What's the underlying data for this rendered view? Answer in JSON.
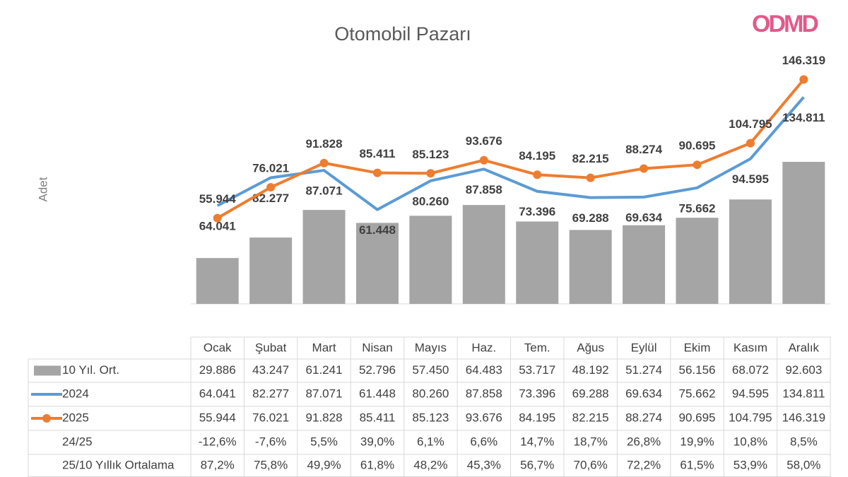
{
  "logo": "ODMD",
  "chart_data": {
    "type": "bar-line",
    "title": "Otomobil Pazarı",
    "y_label": "Adet",
    "categories": [
      "Ocak",
      "Şubat",
      "Mart",
      "Nisan",
      "Mayıs",
      "Haz.",
      "Tem.",
      "Ağus",
      "Eylül",
      "Ekim",
      "Kasım",
      "Aralık"
    ],
    "series": [
      {
        "name": "10 Yıl. Ort.",
        "kind": "bar",
        "color": "#a5a5a5",
        "values": [
          29886,
          43247,
          61241,
          52796,
          57450,
          64483,
          53717,
          48192,
          51274,
          56156,
          68072,
          92603
        ],
        "value_labels": [
          "29.886",
          "43.247",
          "61.241",
          "52.796",
          "57.450",
          "64.483",
          "53.717",
          "48.192",
          "51.274",
          "56.156",
          "68.072",
          "92.603"
        ]
      },
      {
        "name": "2024",
        "kind": "line",
        "color": "#5b9bd5",
        "values": [
          64041,
          82277,
          87071,
          61448,
          80260,
          87858,
          73396,
          69288,
          69634,
          75662,
          94595,
          134811
        ],
        "value_labels": [
          "64.041",
          "82.277",
          "87.071",
          "61.448",
          "80.260",
          "87.858",
          "73.396",
          "69.288",
          "69.634",
          "75.662",
          "94.595",
          "134.811"
        ]
      },
      {
        "name": "2025",
        "kind": "line-marker",
        "color": "#ed7d31",
        "values": [
          55944,
          76021,
          91828,
          85411,
          85123,
          93676,
          84195,
          82215,
          88274,
          90695,
          104795,
          146319
        ],
        "value_labels": [
          "55.944",
          "76.021",
          "91.828",
          "85.411",
          "85.123",
          "93.676",
          "84.195",
          "82.215",
          "88.274",
          "90.695",
          "104.795",
          "146.319"
        ]
      }
    ],
    "ratios": [
      {
        "name": "24/25",
        "values": [
          -12.6,
          -7.6,
          5.5,
          39.0,
          6.1,
          6.6,
          14.7,
          18.7,
          26.8,
          19.9,
          10.8,
          8.5
        ],
        "value_labels": [
          "-12,6%",
          "-7,6%",
          "5,5%",
          "39,0%",
          "6,1%",
          "6,6%",
          "14,7%",
          "18,7%",
          "26,8%",
          "19,9%",
          "10,8%",
          "8,5%"
        ]
      },
      {
        "name": "25/10 Yıllık Ortalama",
        "values": [
          87.2,
          75.8,
          49.9,
          61.8,
          48.2,
          45.3,
          56.7,
          70.6,
          72.2,
          61.5,
          53.9,
          58.0
        ],
        "value_labels": [
          "87,2%",
          "75,8%",
          "49,9%",
          "61,8%",
          "48,2%",
          "45,3%",
          "56,7%",
          "70,6%",
          "72,2%",
          "61,5%",
          "53,9%",
          "58,0%"
        ]
      }
    ]
  }
}
